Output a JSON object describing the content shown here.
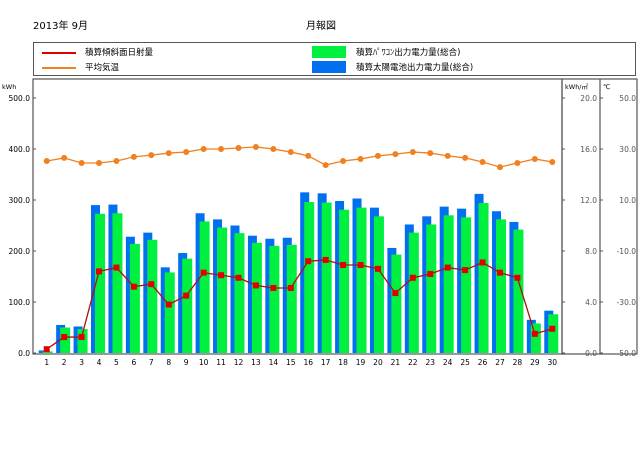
{
  "header": {
    "period": "2013年  9月",
    "title": "月報図"
  },
  "legend": {
    "items": [
      {
        "label": "積算傾斜面日射量",
        "color": "#e00000",
        "kind": "line"
      },
      {
        "label": "平均気温",
        "color": "#f08020",
        "kind": "line"
      },
      {
        "label": "積算ﾊﾟﾜｺﾝ出力電力量(総合)",
        "color": "#00f040",
        "kind": "box"
      },
      {
        "label": "積算太陽電池出力電力量(総合)",
        "color": "#0070f0",
        "kind": "box"
      }
    ]
  },
  "axes": {
    "left_unit": "kWh",
    "mid_unit": "kWh/㎡",
    "right_unit": "℃",
    "left_ticks": [
      "500.0",
      "400.0",
      "300.0",
      "200.0",
      "100.0",
      "0.0"
    ],
    "mid_ticks": [
      "20.0",
      "16.0",
      "12.0",
      "8.0",
      "4.0",
      "0.0"
    ],
    "right_ticks": [
      "50.0",
      "30.0",
      "10.0",
      "-10.0",
      "-30.0",
      "-50.0"
    ]
  },
  "chart_data": {
    "type": "bar",
    "title": "月報図",
    "subtitle": "2013年 9月",
    "xlabel": "",
    "ylabel": "kWh",
    "categories": [
      "1",
      "2",
      "3",
      "4",
      "5",
      "6",
      "7",
      "8",
      "9",
      "10",
      "11",
      "12",
      "13",
      "14",
      "15",
      "16",
      "17",
      "18",
      "19",
      "20",
      "21",
      "22",
      "23",
      "24",
      "25",
      "26",
      "27",
      "28",
      "29",
      "30"
    ],
    "ylim": [
      0,
      500
    ],
    "y2lim": [
      0,
      20
    ],
    "y3lim": [
      -50,
      50
    ],
    "series": [
      {
        "name": "積算太陽電池出力電力量(総合)",
        "type": "bar",
        "axis": "kWh",
        "color": "#0070f0",
        "values": [
          5,
          55,
          52,
          290,
          291,
          228,
          236,
          168,
          196,
          274,
          262,
          250,
          230,
          224,
          226,
          315,
          313,
          298,
          303,
          285,
          206,
          252,
          268,
          287,
          283,
          312,
          278,
          257,
          65,
          83
        ]
      },
      {
        "name": "積算ﾊﾟﾜｺﾝ出力電力量(総合)",
        "type": "bar",
        "axis": "kWh",
        "color": "#00f040",
        "values": [
          3,
          50,
          47,
          273,
          274,
          214,
          222,
          158,
          185,
          258,
          246,
          235,
          216,
          210,
          212,
          296,
          295,
          281,
          285,
          268,
          193,
          236,
          252,
          270,
          266,
          294,
          262,
          242,
          58,
          76
        ]
      },
      {
        "name": "積算傾斜面日射量",
        "type": "line",
        "axis": "kWh/㎡",
        "color": "#e00000",
        "values": [
          0.3,
          1.25,
          1.25,
          6.4,
          6.7,
          5.2,
          5.4,
          3.8,
          4.5,
          6.3,
          6.1,
          5.9,
          5.3,
          5.1,
          5.1,
          7.2,
          7.3,
          6.9,
          6.9,
          6.6,
          4.7,
          5.9,
          6.2,
          6.7,
          6.5,
          7.1,
          6.3,
          5.9,
          1.5,
          1.9
        ]
      },
      {
        "name": "平均気温",
        "type": "line",
        "axis": "℃",
        "color": "#f08020",
        "values": [
          25.3,
          26.5,
          24.5,
          24.5,
          25.3,
          26.9,
          27.6,
          28.4,
          28.8,
          30.0,
          30.0,
          30.4,
          30.8,
          30.0,
          28.8,
          27.3,
          23.7,
          25.3,
          26.1,
          27.3,
          28.0,
          28.8,
          28.4,
          27.3,
          26.5,
          24.9,
          22.9,
          24.5,
          26.1,
          24.9
        ]
      }
    ],
    "grid": false,
    "legend_position": "top"
  }
}
